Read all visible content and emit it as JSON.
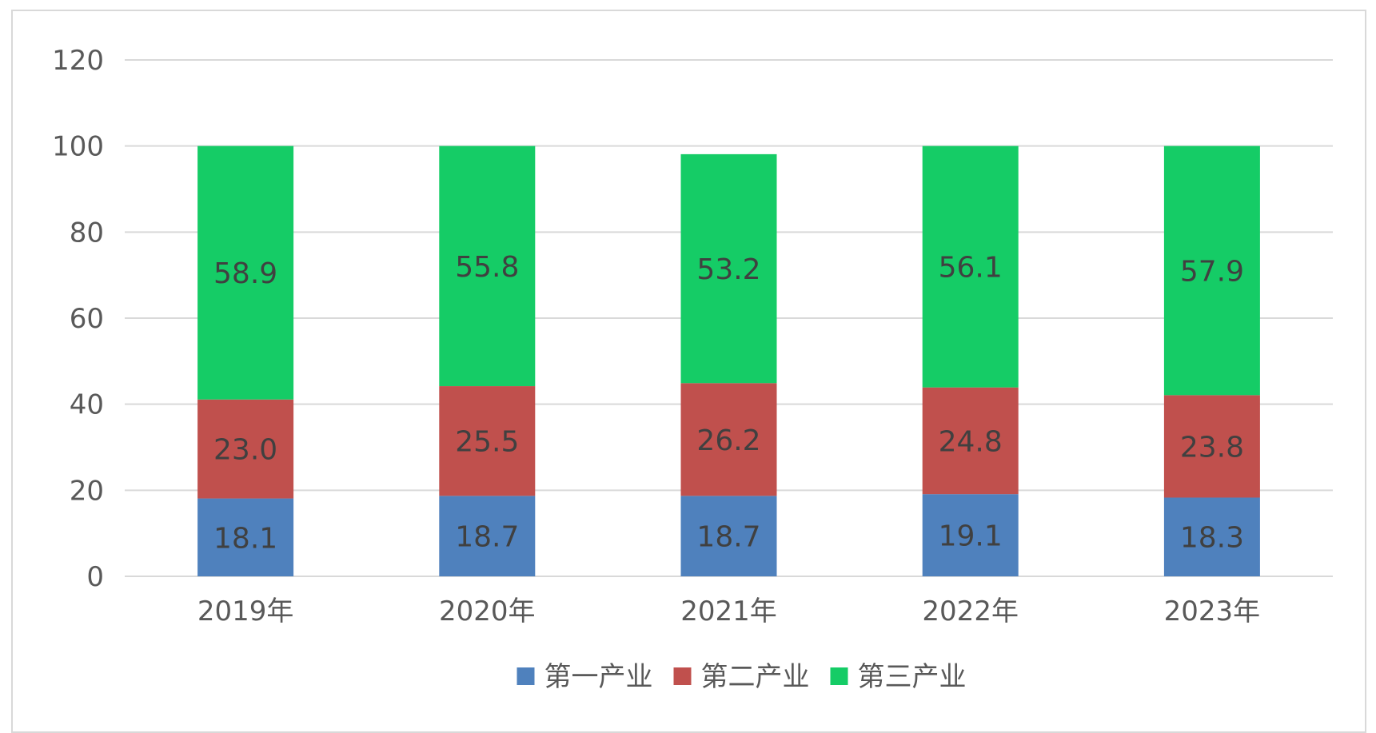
{
  "chart_data": {
    "type": "bar",
    "stacked": true,
    "categories": [
      "2019年",
      "2020年",
      "2021年",
      "2022年",
      "2023年"
    ],
    "series": [
      {
        "name": "第一产业",
        "color": "#4f81bd",
        "values": [
          18.1,
          18.7,
          18.7,
          19.1,
          18.3
        ]
      },
      {
        "name": "第二产业",
        "color": "#c0504d",
        "values": [
          23.0,
          25.5,
          26.2,
          24.8,
          23.8
        ]
      },
      {
        "name": "第三产业",
        "color": "#15cc66",
        "values": [
          58.9,
          55.8,
          53.2,
          56.1,
          57.9
        ]
      }
    ],
    "title": "",
    "xlabel": "",
    "ylabel": "",
    "ylim": [
      0,
      120
    ],
    "yticks": [
      0,
      20,
      40,
      60,
      80,
      100,
      120
    ],
    "grid": true,
    "data_labels": true,
    "legend_position": "bottom"
  }
}
